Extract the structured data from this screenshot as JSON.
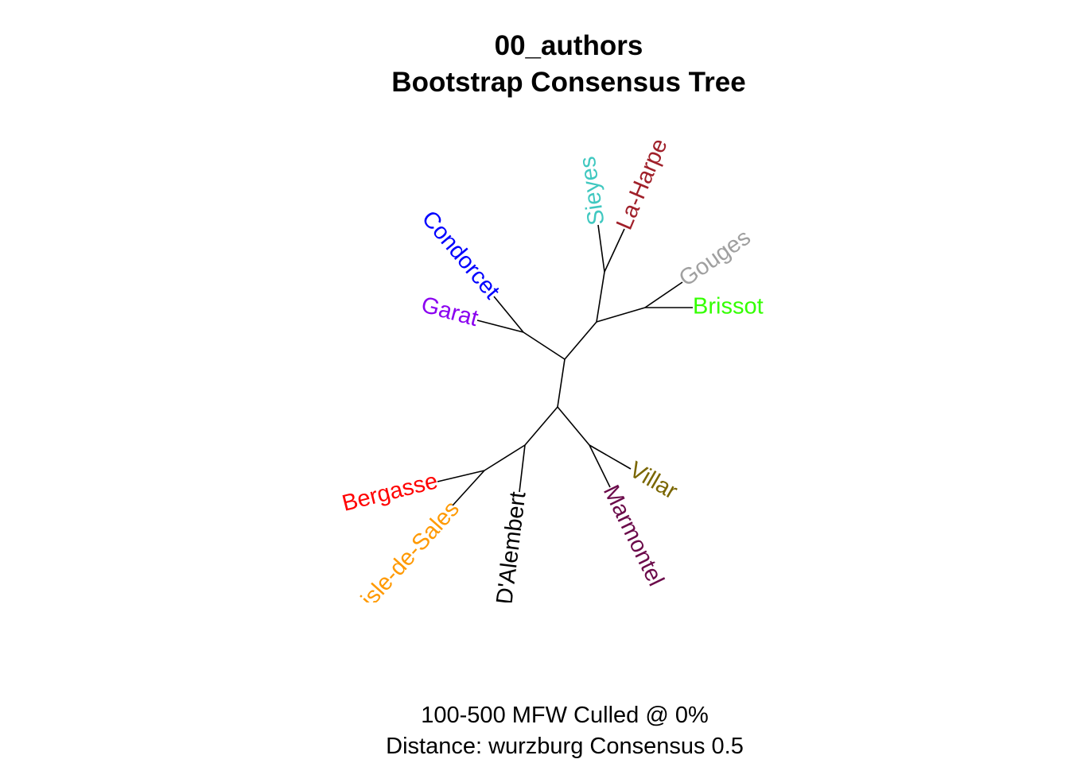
{
  "title": {
    "line1": "00_authors",
    "line2": "Bootstrap Consensus Tree"
  },
  "footer": {
    "line1": "100-500 MFW  Culled @ 0%",
    "line2": "Distance: wurzburg Consensus 0.5"
  },
  "tree": {
    "type": "unrooted-consensus-tree",
    "tips": [
      {
        "label": "Sieyes",
        "color": "#40C8C0"
      },
      {
        "label": "La-Harpe",
        "color": "#A0202A"
      },
      {
        "label": "Gouges",
        "color": "#A0A0A0"
      },
      {
        "label": "Brissot",
        "color": "#33FF00"
      },
      {
        "label": "Condorcet",
        "color": "#0000FF"
      },
      {
        "label": "Garat",
        "color": "#8A00F0"
      },
      {
        "label": "Bergasse",
        "color": "#FF0000"
      },
      {
        "label": "de-Lisle-de-Sales",
        "color": "#FF9900"
      },
      {
        "label": "D'Alembert",
        "color": "#000000"
      },
      {
        "label": "Marmontel",
        "color": "#6B0A4A"
      },
      {
        "label": "Villar",
        "color": "#7A6600"
      }
    ]
  }
}
